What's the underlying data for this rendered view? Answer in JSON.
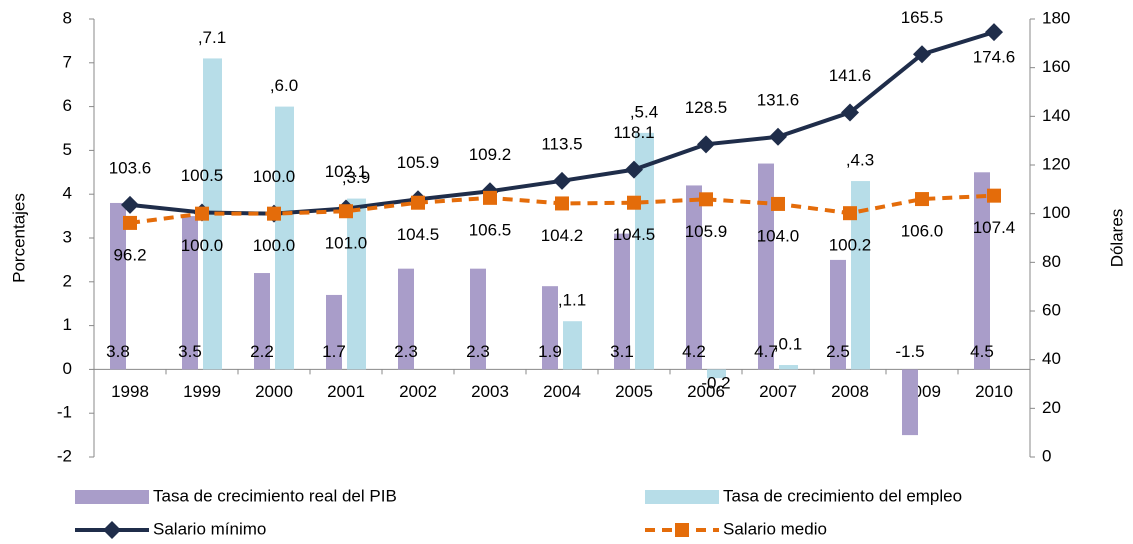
{
  "chart_data": {
    "type": "bar",
    "categories": [
      "1998",
      "1999",
      "2000",
      "2001",
      "2002",
      "2003",
      "2004",
      "2005",
      "2006",
      "2007",
      "2008",
      "2009",
      "2010"
    ],
    "ylabel": "Porcentajes",
    "y2label": "Dólares",
    "ylim": [
      -2,
      8
    ],
    "yticks": [
      -2,
      -1,
      0,
      1,
      2,
      3,
      4,
      5,
      6,
      7,
      8
    ],
    "y2lim": [
      0,
      180
    ],
    "y2ticks": [
      0,
      20,
      40,
      60,
      80,
      100,
      120,
      140,
      160,
      180
    ],
    "series": [
      {
        "name": "Tasa de crecimiento real del PIB",
        "type": "bar",
        "color": "#a99dc9",
        "values": [
          3.8,
          3.5,
          2.2,
          1.7,
          2.3,
          2.3,
          1.9,
          3.1,
          4.2,
          4.7,
          2.5,
          -1.5,
          4.5
        ]
      },
      {
        "name": "Tasa de crecimiento del empleo",
        "type": "bar",
        "color": "#b7dde8",
        "values": [
          null,
          7.1,
          6.0,
          3.9,
          null,
          null,
          1.1,
          5.4,
          -0.2,
          0.1,
          4.3,
          null,
          null
        ],
        "value_labels": [
          null,
          ",7.1",
          ",6.0",
          ",3.9",
          null,
          null,
          ",1.1",
          ",5.4",
          "-0.2",
          ",0.1",
          ",4.3",
          null,
          null
        ]
      },
      {
        "name": "Salario mínimo",
        "type": "line",
        "axis": "y2",
        "color": "#1f2d4a",
        "values": [
          103.6,
          100.5,
          100.0,
          102.1,
          105.9,
          109.2,
          113.5,
          118.1,
          128.5,
          131.6,
          141.6,
          165.5,
          174.6
        ],
        "value_labels": [
          "103.6",
          "100.5",
          "100.0",
          "102.1",
          "105.9",
          "109.2",
          "113.5",
          "118.1",
          "128.5",
          "131.6",
          "141.6",
          "165.5",
          "174.6"
        ]
      },
      {
        "name": "Salario medio",
        "type": "line",
        "axis": "y2",
        "color": "#e46c0a",
        "dashed": true,
        "values": [
          96.2,
          100.0,
          100.0,
          101.0,
          104.5,
          106.5,
          104.2,
          104.5,
          105.9,
          104.0,
          100.2,
          106.0,
          107.4
        ],
        "value_labels": [
          "96.2",
          "100.0",
          "100.0",
          "101.0",
          "104.5",
          "106.5",
          "104.2",
          "104.5",
          "105.9",
          "104.0",
          "100.2",
          "106.0",
          "107.4"
        ]
      }
    ]
  }
}
